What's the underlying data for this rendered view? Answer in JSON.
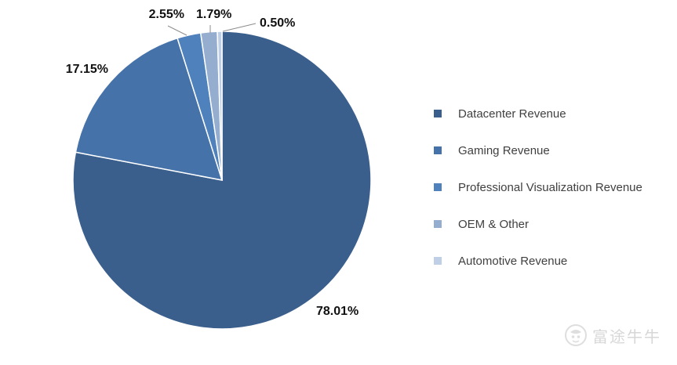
{
  "chart_data": {
    "type": "pie",
    "title": "",
    "categories": [
      "Datacenter Revenue",
      "Gaming Revenue",
      "Professional Visualization Revenue",
      "OEM & Other",
      "Automotive Revenue"
    ],
    "values": [
      78.01,
      17.15,
      2.55,
      1.79,
      0.5
    ],
    "labels": [
      "78.01%",
      "17.15%",
      "2.55%",
      "1.79%",
      "0.50%"
    ],
    "colors": [
      "#3a5f8c",
      "#4572a9",
      "#4f81bd",
      "#95aed0",
      "#bfd0e6"
    ],
    "legend_position": "right"
  },
  "watermark": {
    "text": "富途牛牛",
    "icon": "futu-bull-logo-icon"
  }
}
